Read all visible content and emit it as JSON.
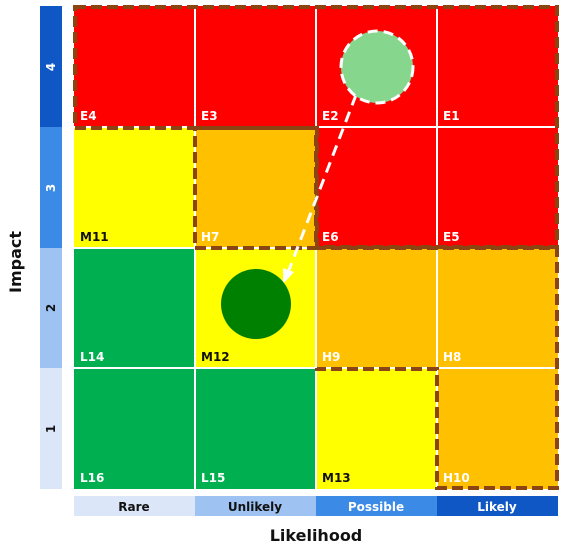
{
  "axes": {
    "x_title": "Likelihood",
    "y_title": "Impact",
    "x_levels": [
      {
        "label": "Rare",
        "color": "#dbe7f8",
        "text_color": "#111111"
      },
      {
        "label": "Unlikely",
        "color": "#9ec2f2",
        "text_color": "#111111"
      },
      {
        "label": "Possible",
        "color": "#3b8ae6",
        "text_color": "#ffffff"
      },
      {
        "label": "Likely",
        "color": "#0e57c4",
        "text_color": "#ffffff"
      }
    ],
    "y_levels": [
      {
        "label": "1",
        "color": "#dbe7f8",
        "text_color": "#111111"
      },
      {
        "label": "2",
        "color": "#9ec2f2",
        "text_color": "#111111"
      },
      {
        "label": "3",
        "color": "#3b8ae6",
        "text_color": "#ffffff"
      },
      {
        "label": "4",
        "color": "#0e57c4",
        "text_color": "#ffffff"
      }
    ]
  },
  "colors": {
    "extreme": "#ff0000",
    "high": "#ffc000",
    "medium": "#ffff00",
    "low": "#00b050",
    "zone_border": "#8b4513",
    "grid_line": "#ffffff"
  },
  "grid": {
    "rows": [
      [
        {
          "label": "E4",
          "level": "extreme"
        },
        {
          "label": "E3",
          "level": "extreme"
        },
        {
          "label": "E2",
          "level": "extreme"
        },
        {
          "label": "E1",
          "level": "extreme"
        }
      ],
      [
        {
          "label": "M11",
          "level": "medium"
        },
        {
          "label": "H7",
          "level": "high"
        },
        {
          "label": "E6",
          "level": "extreme"
        },
        {
          "label": "E5",
          "level": "extreme"
        }
      ],
      [
        {
          "label": "L14",
          "level": "low"
        },
        {
          "label": "M12",
          "level": "medium"
        },
        {
          "label": "H9",
          "level": "high"
        },
        {
          "label": "H8",
          "level": "high"
        }
      ],
      [
        {
          "label": "L16",
          "level": "low"
        },
        {
          "label": "L15",
          "level": "low"
        },
        {
          "label": "M13",
          "level": "medium"
        },
        {
          "label": "H10",
          "level": "high"
        }
      ]
    ]
  },
  "markers": {
    "current": {
      "likelihood": "Possible",
      "impact": "4",
      "color": "#87d68d"
    },
    "target": {
      "likelihood": "Unlikely",
      "impact": "2",
      "color": "#008000"
    }
  }
}
